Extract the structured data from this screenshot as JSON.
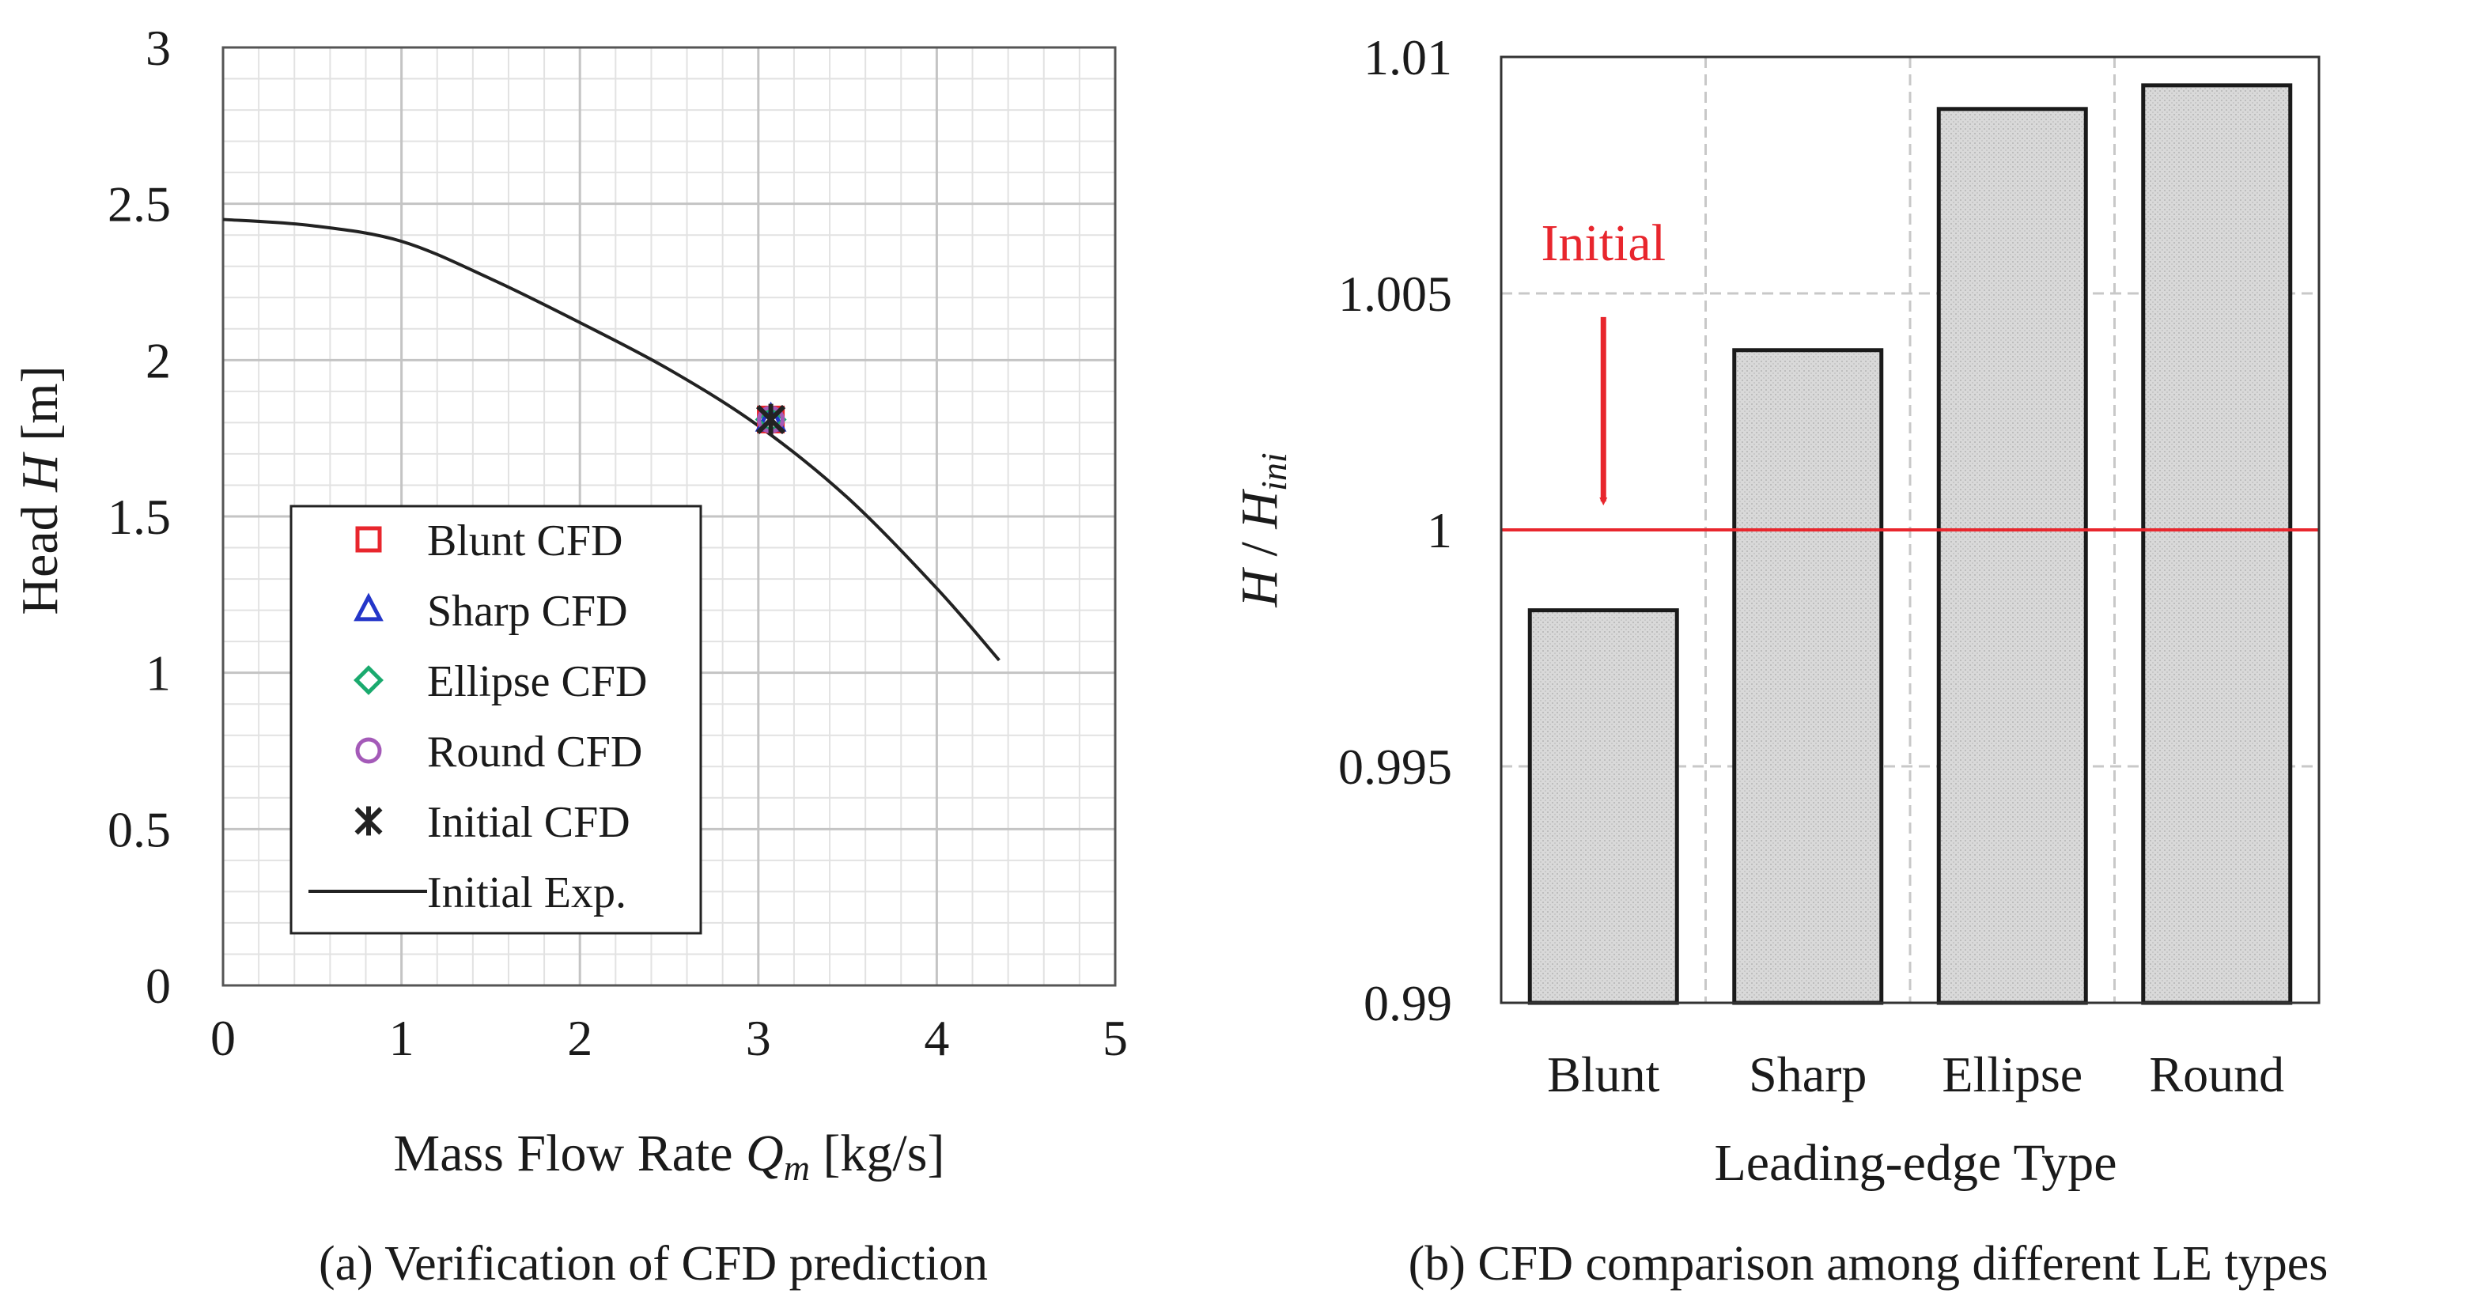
{
  "chart_data": [
    {
      "type": "line",
      "panel": "a",
      "caption": "(a) Verification of CFD prediction",
      "xlabel_prefix": "Mass Flow Rate ",
      "xlabel_symbol": "Q",
      "xlabel_sub": "m",
      "xlabel_unit": " [kg/s]",
      "ylabel_prefix": "Head ",
      "ylabel_symbol": "H",
      "ylabel_unit": " [m]",
      "xlim": [
        0,
        5
      ],
      "ylim": [
        0,
        3
      ],
      "xticks": [
        0,
        1,
        2,
        3,
        4,
        5
      ],
      "yticks": [
        0,
        0.5,
        1,
        1.5,
        2,
        2.5,
        3
      ],
      "xtick_labels": [
        "0",
        "1",
        "2",
        "3",
        "4",
        "5"
      ],
      "ytick_labels": [
        "0",
        "0.5",
        "1",
        "1.5",
        "2",
        "2.5",
        "3"
      ],
      "grid": true,
      "legend_position": "bottom-left",
      "series": [
        {
          "name": "Blunt CFD",
          "kind": "marker",
          "marker": "square",
          "color": "#e8262d",
          "x": [
            3.07
          ],
          "y": [
            1.81
          ]
        },
        {
          "name": "Sharp CFD",
          "kind": "marker",
          "marker": "triangle",
          "color": "#2436c9",
          "x": [
            3.07
          ],
          "y": [
            1.81
          ]
        },
        {
          "name": "Ellipse CFD",
          "kind": "marker",
          "marker": "diamond",
          "color": "#1aaa6e",
          "x": [
            3.07
          ],
          "y": [
            1.81
          ]
        },
        {
          "name": "Round CFD",
          "kind": "marker",
          "marker": "circle",
          "color": "#a45ab8",
          "x": [
            3.07
          ],
          "y": [
            1.81
          ]
        },
        {
          "name": "Initial CFD",
          "kind": "marker",
          "marker": "asterisk",
          "color": "#222222",
          "x": [
            3.07
          ],
          "y": [
            1.81
          ]
        },
        {
          "name": "Initial Exp.",
          "kind": "line",
          "color": "#222222",
          "x": [
            0,
            0.5,
            1.0,
            1.5,
            2.0,
            2.5,
            3.0,
            3.5,
            4.0,
            4.35
          ],
          "y": [
            2.45,
            2.43,
            2.38,
            2.26,
            2.12,
            1.97,
            1.79,
            1.56,
            1.27,
            1.04
          ]
        }
      ]
    },
    {
      "type": "bar",
      "panel": "b",
      "caption": "(b) CFD comparison among different LE types",
      "xlabel": "Leading-edge Type",
      "ylabel_symbol": "H",
      "ylabel_sep": " / ",
      "ylabel_sub": "ini",
      "categories": [
        "Blunt",
        "Sharp",
        "Ellipse",
        "Round"
      ],
      "values": [
        0.9983,
        1.0038,
        1.0089,
        1.0094
      ],
      "ylim": [
        0.99,
        1.01
      ],
      "yticks": [
        0.99,
        0.995,
        1,
        1.005,
        1.01
      ],
      "ytick_labels": [
        "0.99",
        "0.995",
        "1",
        "1.005",
        "1.01"
      ],
      "grid": true,
      "bar_color": "#d9d9d9",
      "reference_line": {
        "value": 1.0,
        "color": "#e8262d"
      },
      "annotation": {
        "text": "Initial",
        "color": "#e8262d",
        "category": "Blunt"
      }
    }
  ]
}
